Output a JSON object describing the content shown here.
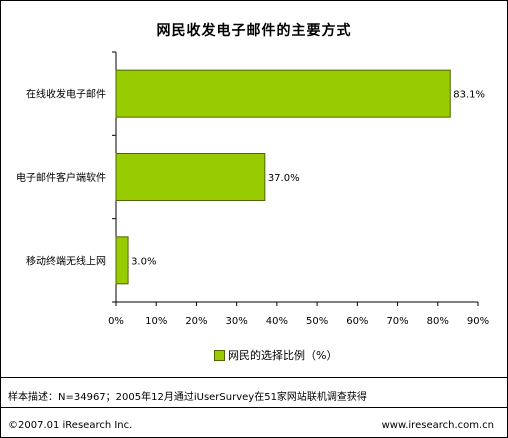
{
  "chart_data": {
    "type": "bar",
    "orientation": "horizontal",
    "title": "网民收发电子邮件的主要方式",
    "categories": [
      "在线收发电子邮件",
      "电子邮件客户端软件",
      "移动终端无线上网"
    ],
    "values": [
      83.1,
      37.0,
      3.0
    ],
    "value_labels": [
      "83.1%",
      "37.0%",
      "3.0%"
    ],
    "xlim": [
      0,
      90
    ],
    "x_ticks": [
      "0%",
      "10%",
      "20%",
      "30%",
      "40%",
      "50%",
      "60%",
      "70%",
      "80%",
      "90%"
    ],
    "grid": false,
    "legend": "bottom",
    "series": [
      {
        "name": "网民的选择比例（%）",
        "values": [
          83.1,
          37.0,
          3.0
        ]
      }
    ],
    "bar_color": "#99cc00",
    "bar_edge_color": "#4d6600"
  },
  "footer": {
    "note": "样本描述：N=34967；2005年12月通过iUserSurvey在51家网站联机调查获得",
    "copyright": "©2007.01 iResearch Inc.",
    "website": "www.iresearch.com.cn"
  }
}
